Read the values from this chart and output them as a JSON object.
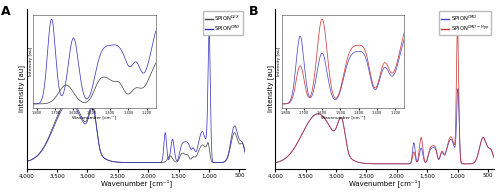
{
  "panel_A_label": "A",
  "panel_B_label": "B",
  "xlabel": "Wavenumber [cm⁻¹]",
  "ylabel": "Intensity [au]",
  "inset_xlabel": "Wavenumber [cm⁻¹]",
  "inset_ylabel": "Intensity [au]",
  "legend_A": [
    "SPION$^{DEX}$",
    "SPION$^{CMD}$"
  ],
  "legend_B": [
    "SPION$^{CMD}$",
    "SPION$^{CMD-Hyp}$"
  ],
  "color_DEX": "#444444",
  "color_CMD": "#3333bb",
  "color_CMD2": "#4444cc",
  "color_Hyp": "#cc3333",
  "main_xticks": [
    4000,
    3500,
    3000,
    2500,
    2000,
    1500,
    1000,
    500
  ],
  "inset_xticks": [
    1800,
    1700,
    1600,
    1500,
    1400,
    1300,
    1200
  ]
}
